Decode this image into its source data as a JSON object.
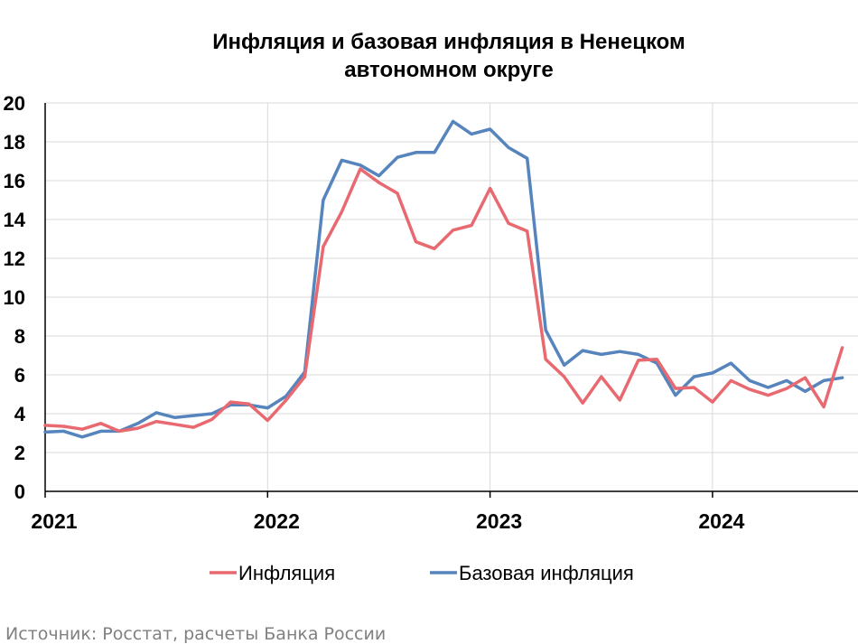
{
  "chart_data": {
    "type": "line",
    "title": [
      "Инфляция и базовая инфляция в Ненецком",
      "автономном округе"
    ],
    "source": "Источник: Росстат, расчеты Банка России",
    "x_start": "2021-01",
    "x_ticks": [
      "2021",
      "2022",
      "2023",
      "2024"
    ],
    "ylim": [
      0,
      20
    ],
    "y_ticks": [
      "0",
      "2",
      "4",
      "6",
      "8",
      "10",
      "12",
      "14",
      "16",
      "18",
      "20"
    ],
    "grid": true,
    "legend_position": "bottom",
    "series": [
      {
        "name": "Инфляция",
        "color": "#E8696F",
        "values": [
          3.4,
          3.35,
          3.2,
          3.5,
          3.1,
          3.25,
          3.6,
          3.45,
          3.3,
          3.7,
          4.6,
          4.5,
          3.65,
          4.7,
          5.9,
          12.6,
          14.4,
          16.6,
          15.9,
          15.35,
          12.85,
          12.5,
          13.45,
          13.7,
          15.6,
          13.8,
          13.4,
          6.8,
          5.9,
          4.55,
          5.9,
          4.7,
          6.75,
          6.8,
          5.3,
          5.35,
          4.6,
          5.7,
          5.25,
          4.95,
          5.3,
          5.85,
          4.35,
          7.4
        ]
      },
      {
        "name": "Базовая инфляция",
        "color": "#5684BC",
        "values": [
          3.05,
          3.1,
          2.8,
          3.1,
          3.1,
          3.5,
          4.05,
          3.8,
          3.9,
          4.0,
          4.45,
          4.45,
          4.3,
          4.9,
          6.15,
          15.0,
          17.05,
          16.8,
          16.25,
          17.2,
          17.45,
          17.45,
          19.05,
          18.4,
          18.65,
          17.7,
          17.15,
          8.3,
          6.5,
          7.25,
          7.05,
          7.2,
          7.05,
          6.6,
          4.95,
          5.9,
          6.1,
          6.6,
          5.7,
          5.35,
          5.7,
          5.15,
          5.7,
          5.85
        ]
      }
    ]
  }
}
